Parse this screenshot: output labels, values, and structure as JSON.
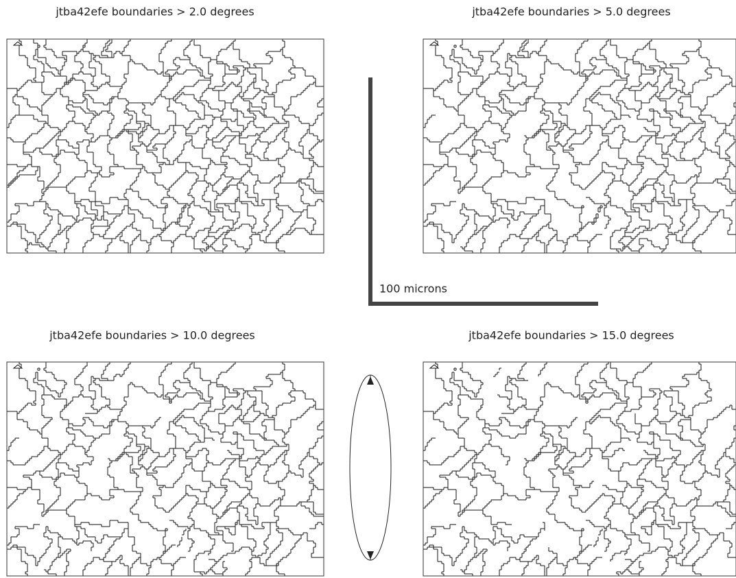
{
  "panels": [
    {
      "title": "jtba42efe boundaries > 2.0 degrees"
    },
    {
      "title": "jtba42efe boundaries > 5.0 degrees"
    },
    {
      "title": "jtba42efe boundaries > 10.0 degrees"
    },
    {
      "title": "jtba42efe boundaries > 15.0 degrees"
    }
  ],
  "scale_bar": {
    "label": "100 microns"
  }
}
